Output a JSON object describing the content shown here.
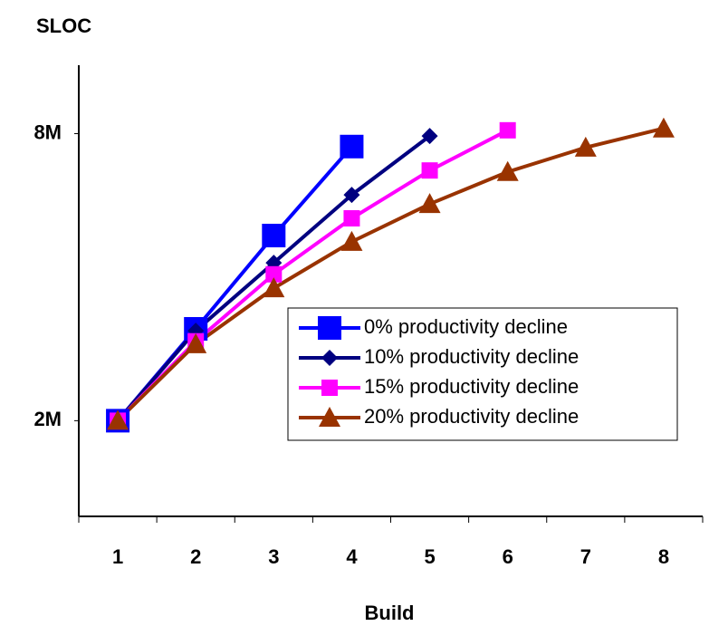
{
  "chart_data": {
    "type": "line",
    "title": "SLOC",
    "x_label": "Build",
    "categories": [
      "1",
      "2",
      "3",
      "4",
      "5",
      "6",
      "7",
      "8"
    ],
    "ylim": [
      0,
      9430000
    ],
    "yticks": [
      {
        "value": 2000000,
        "label": "2M"
      },
      {
        "value": 8000000,
        "label": "8M"
      }
    ],
    "series": [
      {
        "name": "0% productivity decline",
        "color": "#0000ff",
        "marker": "square-large",
        "values": [
          2000000,
          3920000,
          5870000,
          7730000,
          null,
          null,
          null,
          null
        ]
      },
      {
        "name": "10% productivity decline",
        "color": "#000080",
        "marker": "diamond",
        "values": [
          2000000,
          3880000,
          5300000,
          6720000,
          7950000,
          null,
          null,
          null
        ]
      },
      {
        "name": "15% productivity decline",
        "color": "#ff00ff",
        "marker": "square",
        "values": [
          2000000,
          3660000,
          5060000,
          6230000,
          7230000,
          8070000,
          null,
          null
        ]
      },
      {
        "name": "20% productivity decline",
        "color": "#993300",
        "marker": "triangle",
        "values": [
          2000000,
          3600000,
          4770000,
          5740000,
          6530000,
          7200000,
          7710000,
          8110000
        ]
      }
    ]
  }
}
